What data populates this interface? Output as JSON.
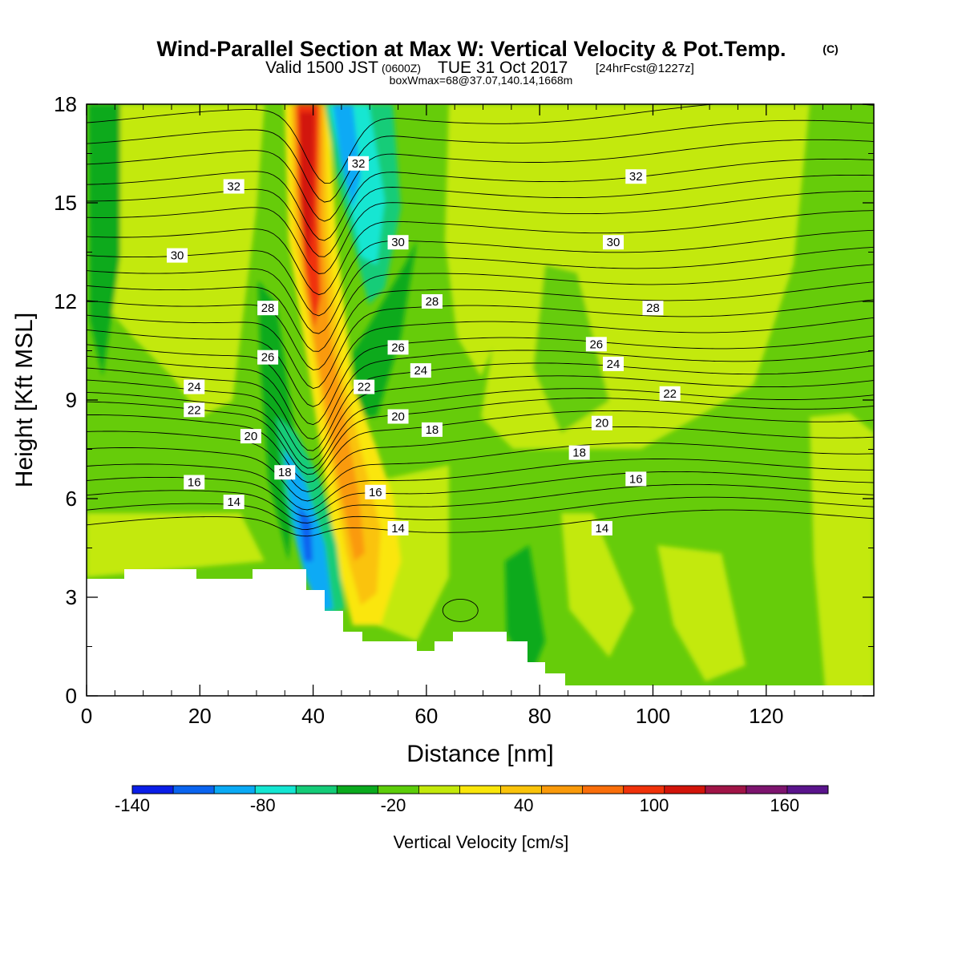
{
  "header": {
    "title": "Wind-Parallel Section at Max W: Vertical Velocity & Pot.Temp.",
    "copyright": "(C)",
    "valid_prefix": "Valid 1500 JST",
    "valid_utc": "(0600Z)",
    "valid_date": "TUE 31 Oct 2017",
    "forecast": "[24hrFcst@1227z]",
    "boxwmax": "boxWmax=68@37.07,140.14,1668m"
  },
  "chart_data": {
    "type": "heatmap",
    "xlabel": "Distance [nm]",
    "ylabel": "Height [Kft MSL]",
    "xlim": [
      0,
      139
    ],
    "ylim": [
      0,
      18
    ],
    "x_ticks": [
      "0",
      "20",
      "40",
      "60",
      "80",
      "100",
      "120"
    ],
    "y_ticks": [
      "0",
      "3",
      "6",
      "9",
      "12",
      "15",
      "18"
    ],
    "colorbar": {
      "label": "Vertical Velocity [cm/s]",
      "tick_labels": [
        "-140",
        "-80",
        "-20",
        "40",
        "100",
        "160"
      ],
      "range": [
        -140,
        180
      ],
      "colors": [
        "#0a1ee8",
        "#0a64f0",
        "#0aaaf5",
        "#14e6d2",
        "#14cc78",
        "#0aaa1e",
        "#5ccd0a",
        "#c3e90a",
        "#fae60a",
        "#fac30a",
        "#fa9a0a",
        "#fa6e0a",
        "#f0320a",
        "#d2140a",
        "#a01446",
        "#7d146e",
        "#5a148c"
      ]
    },
    "contour_labels": {
      "theta_levels": [
        14,
        16,
        18,
        20,
        22,
        24,
        26,
        28,
        30,
        32
      ],
      "labels": [
        {
          "text": "32",
          "x": 26,
          "y": 15.5
        },
        {
          "text": "32",
          "x": 48,
          "y": 16.2
        },
        {
          "text": "32",
          "x": 97,
          "y": 15.8
        },
        {
          "text": "30",
          "x": 16,
          "y": 13.4
        },
        {
          "text": "30",
          "x": 55,
          "y": 13.8
        },
        {
          "text": "30",
          "x": 93,
          "y": 13.8
        },
        {
          "text": "28",
          "x": 32,
          "y": 11.8
        },
        {
          "text": "28",
          "x": 61,
          "y": 12.0
        },
        {
          "text": "28",
          "x": 100,
          "y": 11.8
        },
        {
          "text": "26",
          "x": 32,
          "y": 10.3
        },
        {
          "text": "26",
          "x": 55,
          "y": 10.6
        },
        {
          "text": "26",
          "x": 90,
          "y": 10.7
        },
        {
          "text": "24",
          "x": 19,
          "y": 9.4
        },
        {
          "text": "24",
          "x": 59,
          "y": 9.9
        },
        {
          "text": "24",
          "x": 93,
          "y": 10.1
        },
        {
          "text": "22",
          "x": 19,
          "y": 8.7
        },
        {
          "text": "22",
          "x": 49,
          "y": 9.4
        },
        {
          "text": "22",
          "x": 103,
          "y": 9.2
        },
        {
          "text": "20",
          "x": 29,
          "y": 7.9
        },
        {
          "text": "20",
          "x": 55,
          "y": 8.5
        },
        {
          "text": "20",
          "x": 91,
          "y": 8.3
        },
        {
          "text": "18",
          "x": 35,
          "y": 6.8
        },
        {
          "text": "18",
          "x": 61,
          "y": 8.1
        },
        {
          "text": "18",
          "x": 87,
          "y": 7.4
        },
        {
          "text": "16",
          "x": 19,
          "y": 6.5
        },
        {
          "text": "16",
          "x": 51,
          "y": 6.2
        },
        {
          "text": "16",
          "x": 97,
          "y": 6.6
        },
        {
          "text": "14",
          "x": 26,
          "y": 5.9
        },
        {
          "text": "14",
          "x": 55,
          "y": 5.1
        },
        {
          "text": "14",
          "x": 91,
          "y": 5.1
        }
      ]
    }
  }
}
